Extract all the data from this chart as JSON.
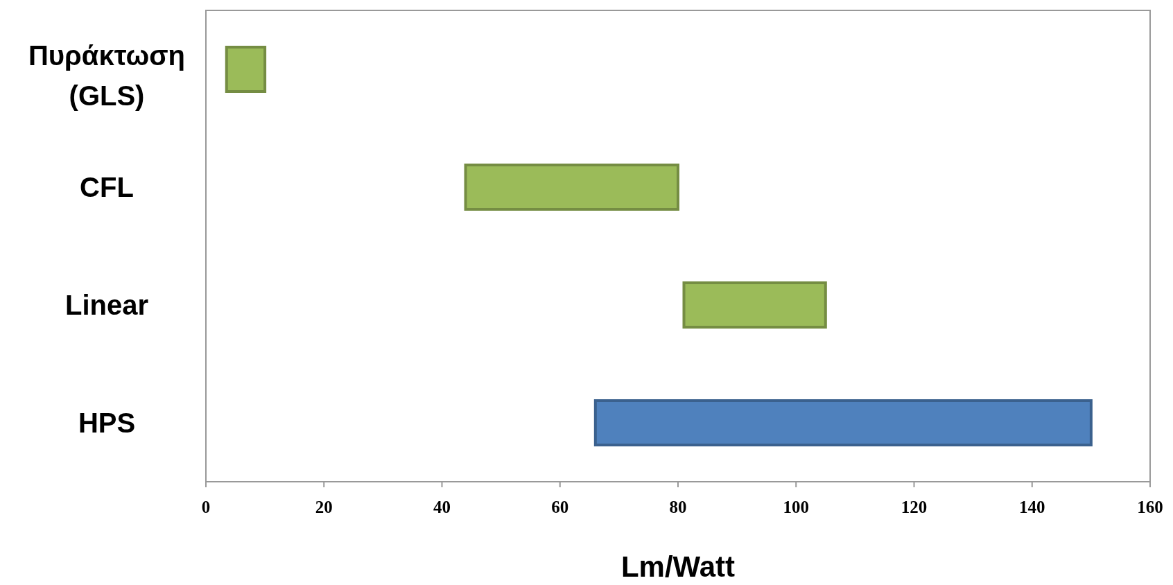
{
  "chart_data": {
    "type": "bar",
    "orientation": "horizontal",
    "xlabel": "Lm/Watt",
    "categories": [
      "Πυράκτωση (GLS)",
      "CFL",
      "Linear",
      "HPS"
    ],
    "base": [
      3.5,
      44,
      81,
      66
    ],
    "values": [
      6.5,
      36,
      24,
      84
    ],
    "colors": [
      "#9bbb59",
      "#9bbb59",
      "#9bbb59",
      "#4f81bd"
    ],
    "xlim": [
      0,
      160
    ],
    "xticks": [
      0,
      20,
      40,
      60,
      80,
      100,
      120,
      140,
      160
    ],
    "grid": false
  }
}
